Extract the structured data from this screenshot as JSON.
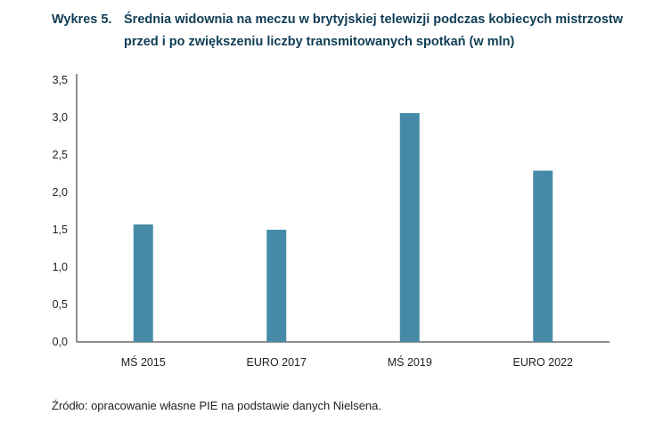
{
  "title": {
    "label": "Wykres 5.",
    "text": "Średnia widownia na meczu w brytyjskiej telewizji podczas kobiecych mistrzostw przed i po zwiększeniu liczby transmitowanych spotkań (w mln)"
  },
  "chart_data": {
    "type": "bar",
    "title": "Średnia widownia na meczu w brytyjskiej telewizji podczas kobiecych mistrzostw przed i po zwiększeniu liczby transmitowanych spotkań (w mln)",
    "categories": [
      "MŚ 2015",
      "EURO 2017",
      "MŚ 2019",
      "EURO 2022"
    ],
    "values": [
      1.57,
      1.5,
      3.06,
      2.29
    ],
    "xlabel": "",
    "ylabel": "",
    "ylim": [
      0,
      3.5
    ],
    "yticks": [
      "0,0",
      "0,5",
      "1,0",
      "1,5",
      "2,0",
      "2,5",
      "3,0",
      "3,5"
    ],
    "grid": false,
    "bar_color": "#458ba8"
  },
  "source": "Źródło: opracowanie własne PIE na podstawie danych Nielsena."
}
